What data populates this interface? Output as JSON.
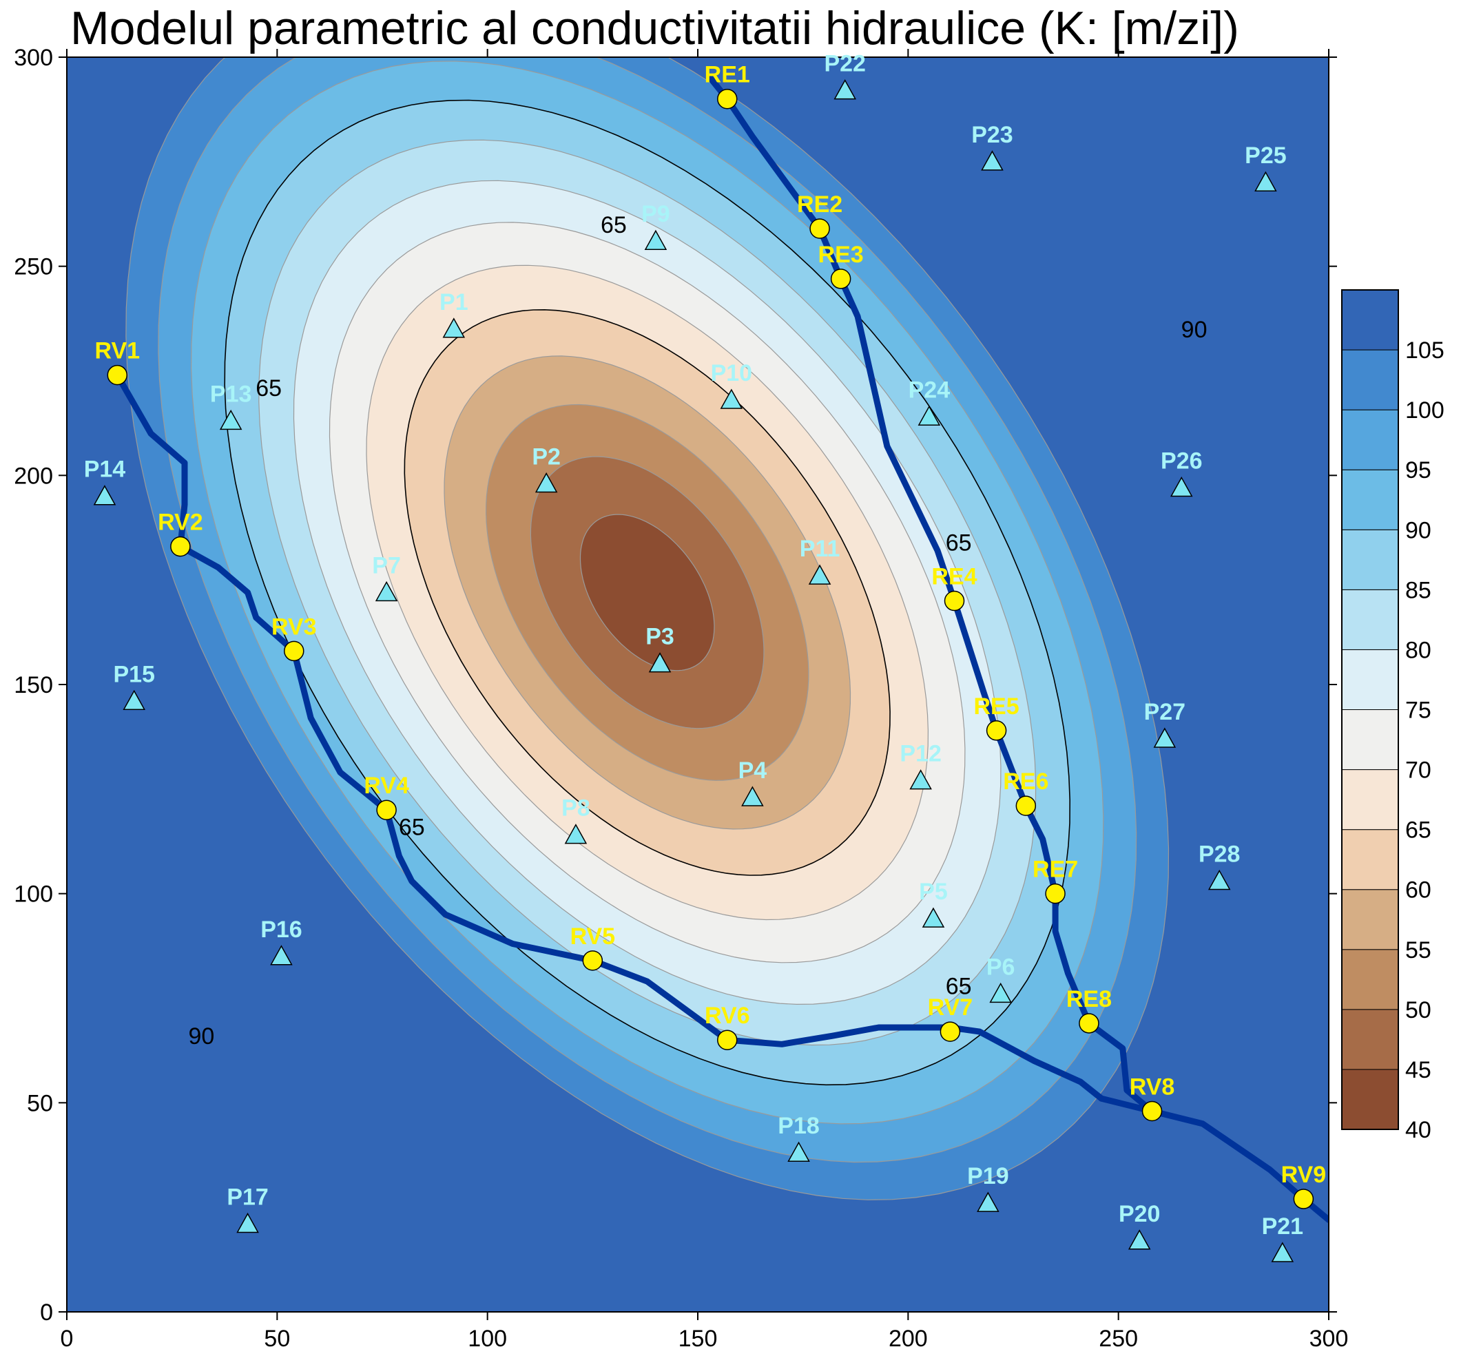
{
  "chart_data": {
    "type": "heatmap",
    "subtype": "filled-contour-map",
    "title": "Modelul parametric al conductivitatii hidraulice (K: [m/zi])",
    "xlabel": "",
    "ylabel": "",
    "xlim": [
      0,
      300
    ],
    "ylim": [
      0,
      300
    ],
    "x_ticks": [
      0,
      50,
      100,
      150,
      200,
      250,
      300
    ],
    "y_ticks": [
      0,
      50,
      100,
      150,
      200,
      250,
      300
    ],
    "grid": false,
    "legend_placement": "right",
    "field": {
      "description_units": "K [m/zi]",
      "trough_center": [
        138,
        172
      ],
      "trough_min": 40,
      "corner_max": 107,
      "major_axis_angle_deg": -55
    },
    "colorbar": {
      "levels": [
        40,
        45,
        50,
        55,
        60,
        65,
        70,
        75,
        80,
        85,
        90,
        95,
        100,
        105,
        110
      ],
      "tick_labels": [
        "40",
        "45",
        "50",
        "55",
        "60",
        "65",
        "70",
        "75",
        "80",
        "85",
        "90",
        "95",
        "100",
        "105"
      ],
      "colors": [
        "#8c4d31",
        "#a66c48",
        "#bf8d62",
        "#d6ae85",
        "#f0cfb0",
        "#f7e6d6",
        "#f0f0ee",
        "#ddeff7",
        "#b8e2f3",
        "#90d0ed",
        "#6cbce6",
        "#56a6de",
        "#4289cf",
        "#3266b6"
      ]
    },
    "contour_labels": [
      {
        "text": "65",
        "x": 130,
        "y": 260
      },
      {
        "text": "65",
        "x": 48,
        "y": 221
      },
      {
        "text": "65",
        "x": 212,
        "y": 184
      },
      {
        "text": "65",
        "x": 82,
        "y": 116
      },
      {
        "text": "65",
        "x": 212,
        "y": 78
      },
      {
        "text": "90",
        "x": 268,
        "y": 235
      },
      {
        "text": "90",
        "x": 32,
        "y": 66
      }
    ],
    "rivers": [
      {
        "name": "",
        "points": [
          [
            153,
            295
          ],
          [
            157,
            290
          ],
          [
            163,
            281
          ],
          [
            171,
            270
          ],
          [
            179,
            259
          ],
          [
            184,
            247
          ],
          [
            188,
            238
          ],
          [
            195,
            207
          ],
          [
            207,
            182
          ],
          [
            211,
            170
          ],
          [
            218,
            148
          ],
          [
            221,
            139
          ],
          [
            228,
            121
          ],
          [
            232,
            113
          ],
          [
            235,
            100
          ],
          [
            235,
            91
          ],
          [
            238,
            81
          ],
          [
            243,
            69
          ],
          [
            251,
            63
          ],
          [
            252,
            53
          ],
          [
            258,
            48
          ]
        ]
      },
      {
        "name": "",
        "points": [
          [
            12,
            224
          ],
          [
            20,
            210
          ],
          [
            28,
            203
          ],
          [
            28,
            193
          ],
          [
            27,
            183
          ],
          [
            36,
            178
          ],
          [
            43,
            172
          ],
          [
            45,
            166
          ],
          [
            54,
            158
          ],
          [
            58,
            142
          ],
          [
            65,
            129
          ],
          [
            76,
            120
          ],
          [
            79,
            109
          ],
          [
            82,
            103
          ],
          [
            90,
            95
          ],
          [
            106,
            88
          ],
          [
            125,
            84
          ],
          [
            138,
            79
          ],
          [
            157,
            65
          ],
          [
            170,
            64
          ],
          [
            182,
            66
          ],
          [
            193,
            68
          ],
          [
            210,
            68
          ],
          [
            217,
            67
          ],
          [
            230,
            60
          ],
          [
            241,
            55
          ],
          [
            246,
            51
          ],
          [
            258,
            48
          ],
          [
            270,
            45
          ],
          [
            286,
            34
          ],
          [
            294,
            27
          ],
          [
            300,
            22
          ]
        ]
      }
    ],
    "piezometers": [
      {
        "name": "P1",
        "x": 92,
        "y": 235
      },
      {
        "name": "P2",
        "x": 114,
        "y": 198
      },
      {
        "name": "P3",
        "x": 141,
        "y": 155
      },
      {
        "name": "P4",
        "x": 163,
        "y": 123
      },
      {
        "name": "P5",
        "x": 206,
        "y": 94
      },
      {
        "name": "P6",
        "x": 222,
        "y": 76
      },
      {
        "name": "P7",
        "x": 76,
        "y": 172
      },
      {
        "name": "P8",
        "x": 121,
        "y": 114
      },
      {
        "name": "P9",
        "x": 140,
        "y": 256
      },
      {
        "name": "P10",
        "x": 158,
        "y": 218
      },
      {
        "name": "P11",
        "x": 179,
        "y": 176
      },
      {
        "name": "P12",
        "x": 203,
        "y": 127
      },
      {
        "name": "P13",
        "x": 39,
        "y": 213
      },
      {
        "name": "P14",
        "x": 9,
        "y": 195
      },
      {
        "name": "P15",
        "x": 16,
        "y": 146
      },
      {
        "name": "P16",
        "x": 51,
        "y": 85
      },
      {
        "name": "P17",
        "x": 43,
        "y": 21
      },
      {
        "name": "P18",
        "x": 174,
        "y": 38
      },
      {
        "name": "P19",
        "x": 219,
        "y": 26
      },
      {
        "name": "P20",
        "x": 255,
        "y": 17
      },
      {
        "name": "P21",
        "x": 289,
        "y": 14
      },
      {
        "name": "P22",
        "x": 185,
        "y": 292
      },
      {
        "name": "P23",
        "x": 220,
        "y": 275
      },
      {
        "name": "P24",
        "x": 205,
        "y": 214
      },
      {
        "name": "P25",
        "x": 285,
        "y": 270
      },
      {
        "name": "P26",
        "x": 265,
        "y": 197
      },
      {
        "name": "P27",
        "x": 261,
        "y": 137
      },
      {
        "name": "P28",
        "x": 274,
        "y": 103
      }
    ],
    "stations": [
      {
        "name": "RE1",
        "x": 157,
        "y": 290
      },
      {
        "name": "RE2",
        "x": 179,
        "y": 259
      },
      {
        "name": "RE3",
        "x": 184,
        "y": 247
      },
      {
        "name": "RE4",
        "x": 211,
        "y": 170
      },
      {
        "name": "RE5",
        "x": 221,
        "y": 139
      },
      {
        "name": "RE6",
        "x": 228,
        "y": 121
      },
      {
        "name": "RE7",
        "x": 235,
        "y": 100
      },
      {
        "name": "RE8",
        "x": 243,
        "y": 69
      },
      {
        "name": "RV1",
        "x": 12,
        "y": 224
      },
      {
        "name": "RV2",
        "x": 27,
        "y": 183
      },
      {
        "name": "RV3",
        "x": 54,
        "y": 158
      },
      {
        "name": "RV4",
        "x": 76,
        "y": 120
      },
      {
        "name": "RV5",
        "x": 125,
        "y": 84
      },
      {
        "name": "RV6",
        "x": 157,
        "y": 65
      },
      {
        "name": "RV7",
        "x": 210,
        "y": 67
      },
      {
        "name": "RV8",
        "x": 258,
        "y": 48
      },
      {
        "name": "RV9",
        "x": 294,
        "y": 27
      }
    ],
    "style": {
      "piezometer_label_color": "#a8f4f8",
      "station_label_color": "#fff200",
      "river_color": "#00339a",
      "top_border_color": "#ff3030"
    }
  }
}
